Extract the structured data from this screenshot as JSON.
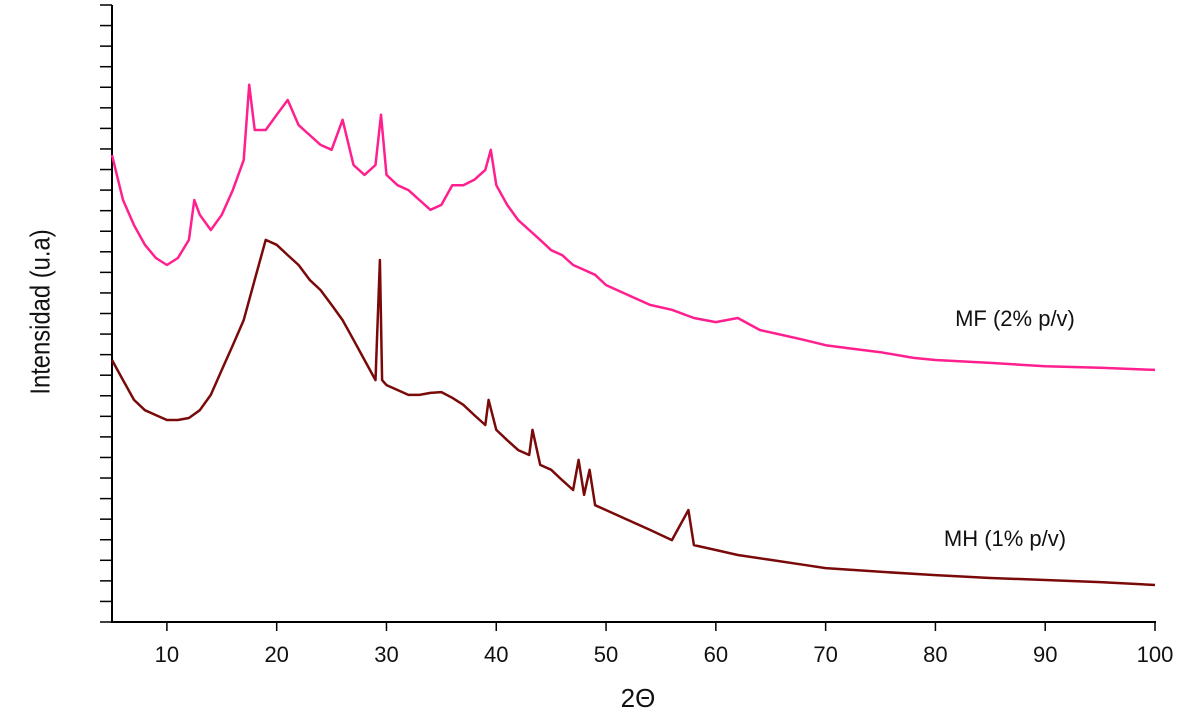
{
  "chart_data": {
    "type": "line",
    "x_label": "2Θ",
    "y_label": "Intensidad (u.a)",
    "xlim": [
      5,
      100
    ],
    "xticks": [
      10,
      20,
      30,
      40,
      50,
      60,
      70,
      80,
      90,
      100
    ],
    "ylim": [
      0,
      15
    ],
    "yticks": [
      0,
      0.5,
      1,
      1.5,
      2,
      2.5,
      3,
      3.5,
      4,
      4.5,
      5,
      5.5,
      6,
      6.5,
      7,
      7.5,
      8,
      8.5,
      9,
      9.5,
      10,
      10.5,
      11,
      11.5,
      12,
      12.5,
      13,
      13.5,
      14,
      14.5,
      15
    ],
    "series": [
      {
        "name": "MF (2% p/v)",
        "color": "#ff1f8e",
        "x": [
          5,
          6,
          7,
          8,
          9,
          10,
          11,
          12,
          12.5,
          13,
          14,
          15,
          16,
          17,
          17.5,
          18,
          19,
          20,
          21,
          22,
          23,
          24,
          25,
          26,
          27,
          28,
          29,
          29.5,
          30,
          31,
          32,
          33,
          34,
          35,
          36,
          37,
          38,
          39,
          39.5,
          40,
          41,
          42,
          43,
          44,
          45,
          46,
          47,
          48,
          49,
          50,
          52,
          54,
          56,
          58,
          60,
          62,
          64,
          66,
          68,
          70,
          72,
          75,
          78,
          80,
          85,
          90,
          95,
          100
        ],
        "values": [
          11.35,
          10.26,
          9.65,
          9.17,
          8.85,
          8.68,
          8.85,
          9.29,
          10.26,
          9.9,
          9.53,
          9.9,
          10.5,
          11.23,
          13.06,
          11.96,
          11.96,
          12.33,
          12.69,
          12.08,
          11.84,
          11.6,
          11.48,
          12.21,
          11.11,
          10.87,
          11.11,
          12.33,
          10.87,
          10.62,
          10.5,
          10.26,
          10.02,
          10.14,
          10.62,
          10.62,
          10.75,
          10.99,
          11.48,
          10.62,
          10.14,
          9.77,
          9.53,
          9.29,
          9.04,
          8.92,
          8.68,
          8.56,
          8.44,
          8.19,
          7.95,
          7.71,
          7.59,
          7.39,
          7.29,
          7.39,
          7.1,
          6.98,
          6.86,
          6.73,
          6.66,
          6.56,
          6.42,
          6.37,
          6.3,
          6.22,
          6.18,
          6.13
        ]
      },
      {
        "name": "MH (1% p/v)",
        "color": "#7a0a0a",
        "x": [
          5,
          6,
          7,
          8,
          9,
          10,
          11,
          12,
          13,
          14,
          15,
          16,
          17,
          18,
          19,
          20,
          21,
          22,
          23,
          24,
          25,
          26,
          27,
          28,
          29,
          29.4,
          29.6,
          30,
          31,
          32,
          33,
          34,
          35,
          36,
          37,
          38,
          39,
          39.3,
          40,
          41,
          42,
          43,
          43.3,
          44,
          45,
          46,
          47,
          47.5,
          48,
          48.5,
          49,
          50,
          52,
          54,
          56,
          57.5,
          58,
          60,
          62,
          65,
          68,
          70,
          75,
          80,
          85,
          90,
          95,
          100
        ],
        "values": [
          6.37,
          5.88,
          5.4,
          5.15,
          5.03,
          4.91,
          4.91,
          4.96,
          5.15,
          5.52,
          6.13,
          6.73,
          7.34,
          8.32,
          9.29,
          9.17,
          8.92,
          8.68,
          8.32,
          8.07,
          7.71,
          7.34,
          6.86,
          6.37,
          5.88,
          8.8,
          5.88,
          5.76,
          5.64,
          5.52,
          5.52,
          5.57,
          5.59,
          5.45,
          5.28,
          5.03,
          4.79,
          5.4,
          4.67,
          4.42,
          4.18,
          4.06,
          4.67,
          3.82,
          3.7,
          3.45,
          3.21,
          3.94,
          3.09,
          3.7,
          2.84,
          2.72,
          2.48,
          2.24,
          1.99,
          2.72,
          1.87,
          1.75,
          1.63,
          1.51,
          1.39,
          1.31,
          1.22,
          1.14,
          1.07,
          1.02,
          0.97,
          0.9
        ]
      }
    ]
  }
}
